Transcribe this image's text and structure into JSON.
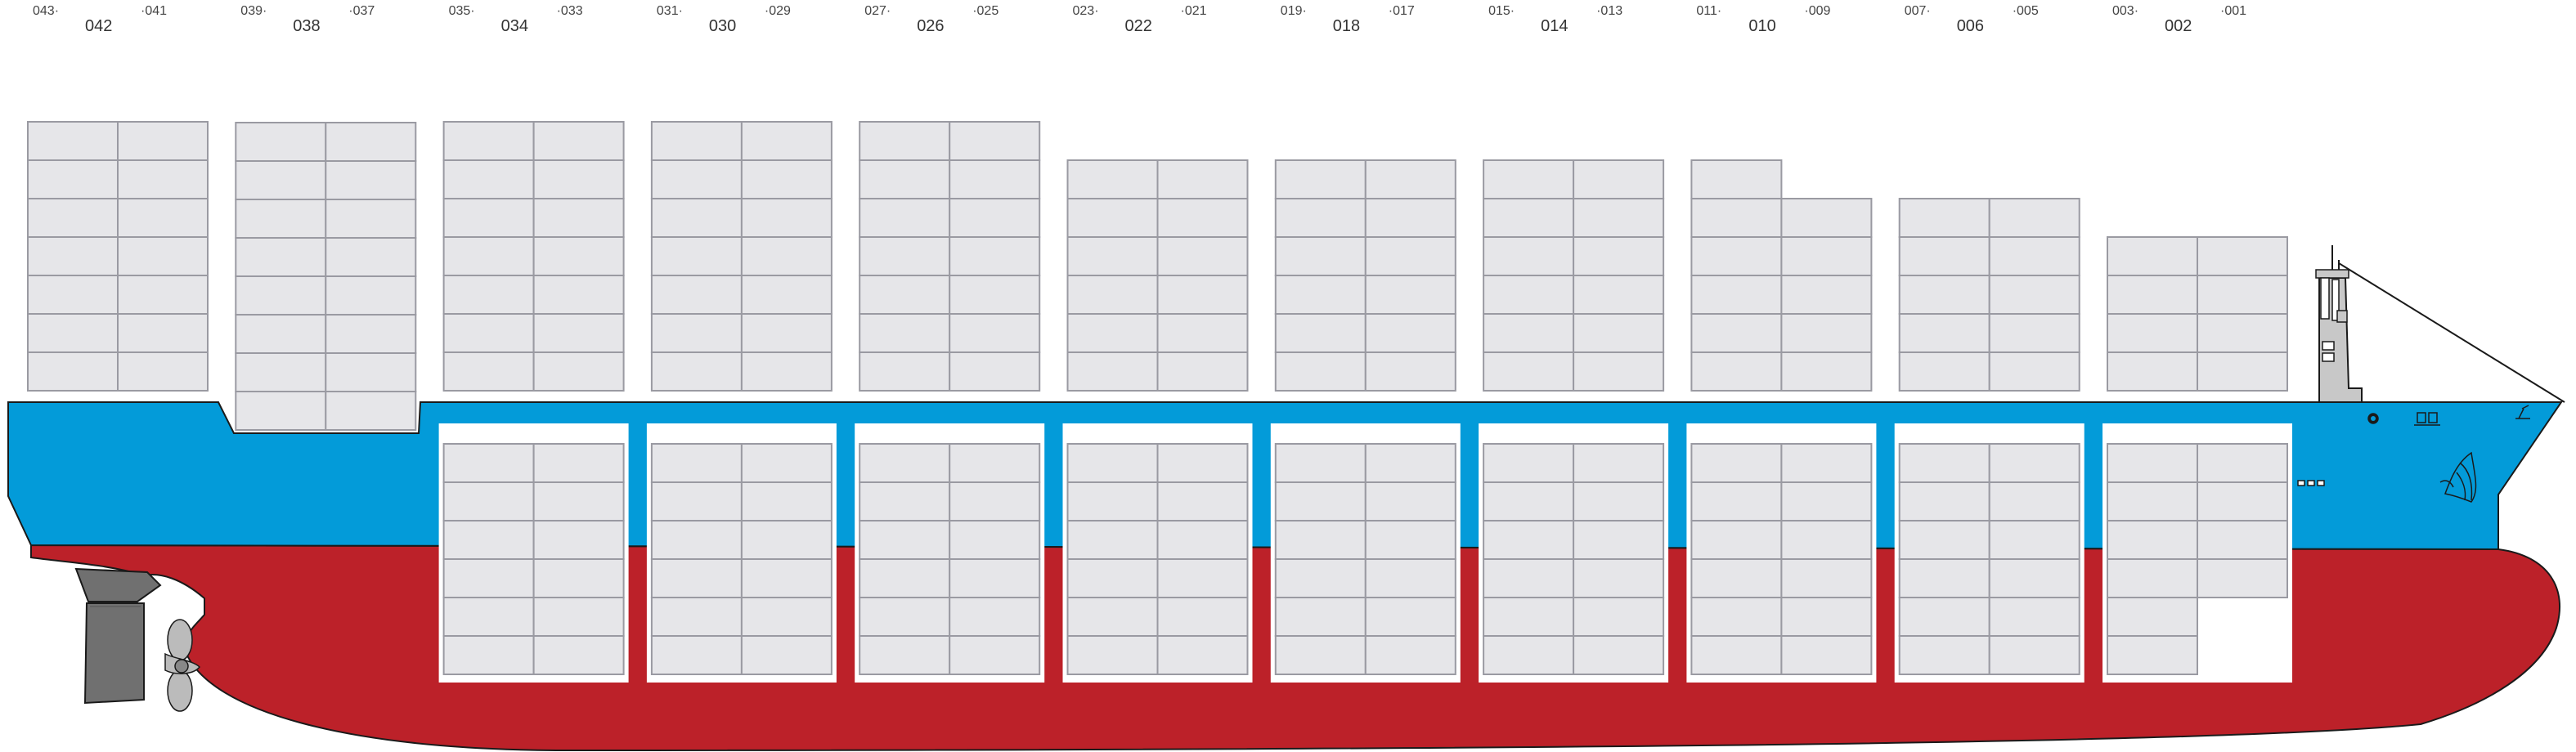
{
  "diagram": {
    "colors": {
      "hull_upper": "#039bd9",
      "hull_lower": "#bc2129",
      "hold_frame": "#ffffff",
      "container_fill": "#e6e6e9",
      "container_stroke": "#9a9aa2",
      "outline": "#1a1a1a",
      "rudder": "#707070",
      "propeller": "#bbbbbb",
      "bridge": "#c8c8c8"
    },
    "bays": [
      {
        "main": "042",
        "left": "043",
        "right": "041",
        "deck_tiers": 7,
        "hold_tiers": 0
      },
      {
        "main": "038",
        "left": "039",
        "right": "037",
        "deck_tiers": 8,
        "hold_tiers": 0
      },
      {
        "main": "034",
        "left": "035",
        "right": "033",
        "deck_tiers": 7,
        "hold_tiers": 6
      },
      {
        "main": "030",
        "left": "031",
        "right": "029",
        "deck_tiers": 7,
        "hold_tiers": 6
      },
      {
        "main": "026",
        "left": "027",
        "right": "025",
        "deck_tiers": 7,
        "hold_tiers": 6
      },
      {
        "main": "022",
        "left": "023",
        "right": "021",
        "deck_tiers": 6,
        "hold_tiers": 6
      },
      {
        "main": "018",
        "left": "019",
        "right": "017",
        "deck_tiers": 6,
        "hold_tiers": 6
      },
      {
        "main": "014",
        "left": "015",
        "right": "013",
        "deck_tiers": 6,
        "hold_tiers": 6
      },
      {
        "main": "010",
        "left": "011",
        "right": "009",
        "deck_tiers": 5,
        "deck_tiers_left_extra": 1,
        "hold_tiers": 6
      },
      {
        "main": "006",
        "left": "007",
        "right": "005",
        "deck_tiers": 5,
        "hold_tiers": 6
      },
      {
        "main": "002",
        "left": "003",
        "right": "001",
        "deck_tiers": 4,
        "hold_tiers": 4,
        "hold_tiers_left_extra": 2
      }
    ]
  }
}
